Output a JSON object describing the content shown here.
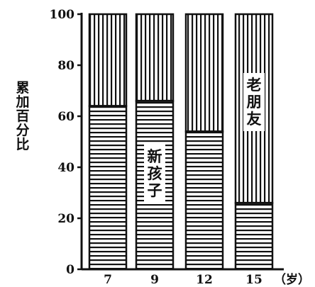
{
  "chart_data": {
    "type": "bar",
    "stacked": true,
    "categories": [
      "7",
      "9",
      "12",
      "15"
    ],
    "x_unit": "（岁）",
    "ylabel": "累加百分比",
    "ylim": [
      0,
      100
    ],
    "y_ticks": [
      "0",
      "20",
      "40",
      "60",
      "80",
      "100"
    ],
    "grid": false,
    "series": [
      {
        "name": "新孩子",
        "values": [
          64,
          66,
          54,
          26
        ],
        "pattern": "horizontal-stripes"
      },
      {
        "name": "老朋友",
        "values": [
          36,
          34,
          46,
          74
        ],
        "pattern": "vertical-stripes"
      }
    ]
  }
}
